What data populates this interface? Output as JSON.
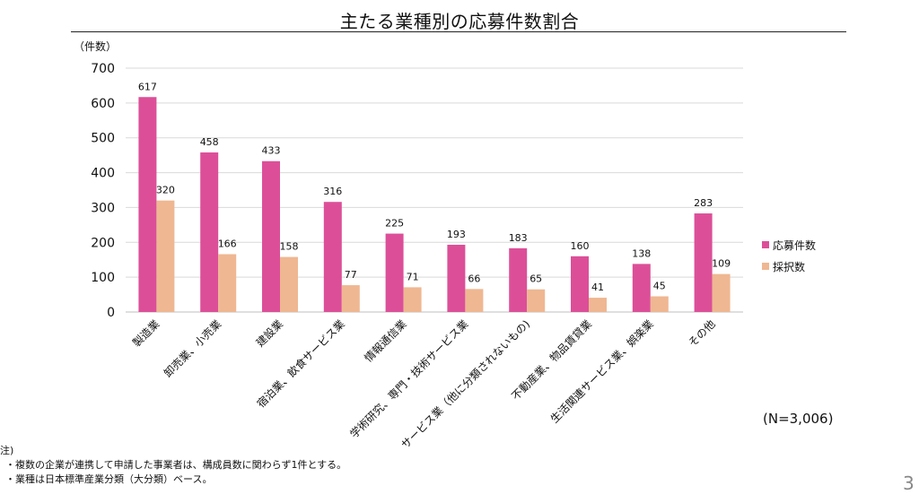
{
  "chart_data": {
    "type": "bar",
    "title": "主たる業種別の応募件数割合",
    "ylabel": "（件数）",
    "ylim": [
      0,
      700
    ],
    "yticks": [
      0,
      100,
      200,
      300,
      400,
      500,
      600,
      700
    ],
    "grid": true,
    "legend_position": "right",
    "categories": [
      "製造業",
      "卸売業、小売業",
      "建設業",
      "宿泊業、飲食サービス業",
      "情報通信業",
      "学術研究、専門・技術サービス業",
      "サービス業（他に分類されないもの)",
      "不動産業、物品賃貸業",
      "生活関連サービス業、娯楽業",
      "その他"
    ],
    "series": [
      {
        "name": "応募件数",
        "color": "#dc4f98",
        "values": [
          617,
          458,
          433,
          316,
          225,
          193,
          183,
          160,
          138,
          283
        ]
      },
      {
        "name": "採択数",
        "color": "#efb792",
        "values": [
          320,
          166,
          158,
          77,
          71,
          66,
          65,
          41,
          45,
          109
        ]
      }
    ],
    "annotation": "(N=3,006)"
  },
  "notes": {
    "heading": "注)",
    "lines": [
      "・複数の企業が連携して申請した事業者は、構成員数に関わらず1件とする。",
      "・業種は日本標準産業分類（大分類）ベース。"
    ]
  },
  "page_number": "3"
}
